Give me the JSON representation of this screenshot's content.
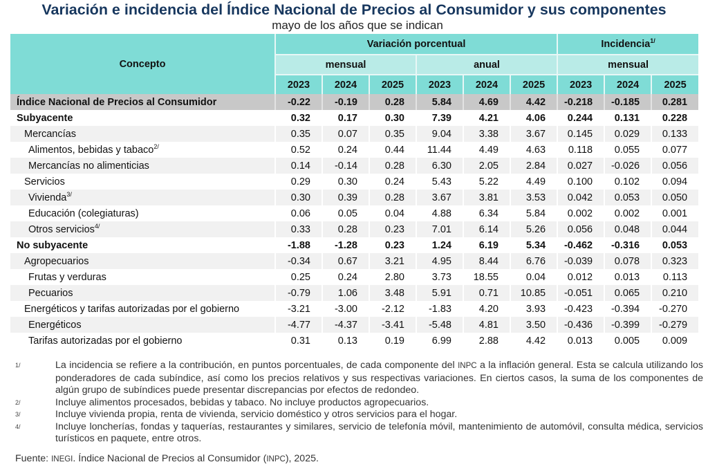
{
  "title": "Variación e incidencia del Índice Nacional de Precios al Consumidor y sus componentes",
  "subtitle": "mayo de los años que se indican",
  "header": {
    "concepto": "Concepto",
    "variacion": "Variación porcentual",
    "incidencia": "Incidencia",
    "incidencia_note": "1/",
    "mensual": "mensual",
    "anual": "anual",
    "mensual_inc": "mensual",
    "years": [
      "2023",
      "2024",
      "2025",
      "2023",
      "2024",
      "2025",
      "2023",
      "2024",
      "2025"
    ]
  },
  "rows": [
    {
      "label": "Índice Nacional de Precios al Consumidor",
      "note": "",
      "level": 0,
      "style": "total",
      "values": [
        "-0.22",
        "-0.19",
        "0.28",
        "5.84",
        "4.69",
        "4.42",
        "-0.218",
        "-0.185",
        "0.281"
      ]
    },
    {
      "label": "Subyacente",
      "note": "",
      "level": 0,
      "style": "bold",
      "values": [
        "0.32",
        "0.17",
        "0.30",
        "7.39",
        "4.21",
        "4.06",
        "0.244",
        "0.131",
        "0.228"
      ]
    },
    {
      "label": "Mercancías",
      "note": "",
      "level": 1,
      "style": "normal",
      "values": [
        "0.35",
        "0.07",
        "0.35",
        "9.04",
        "3.38",
        "3.67",
        "0.145",
        "0.029",
        "0.133"
      ]
    },
    {
      "label": "Alimentos, bebidas y tabaco",
      "note": "2/",
      "level": 2,
      "style": "normal",
      "values": [
        "0.52",
        "0.24",
        "0.44",
        "11.44",
        "4.49",
        "4.63",
        "0.118",
        "0.055",
        "0.077"
      ]
    },
    {
      "label": "Mercancías no alimenticias",
      "note": "",
      "level": 2,
      "style": "normal",
      "values": [
        "0.14",
        "-0.14",
        "0.28",
        "6.30",
        "2.05",
        "2.84",
        "0.027",
        "-0.026",
        "0.056"
      ]
    },
    {
      "label": "Servicios",
      "note": "",
      "level": 1,
      "style": "normal",
      "values": [
        "0.29",
        "0.30",
        "0.24",
        "5.43",
        "5.22",
        "4.49",
        "0.100",
        "0.102",
        "0.094"
      ]
    },
    {
      "label": "Vivienda",
      "note": "3/",
      "level": 2,
      "style": "normal",
      "values": [
        "0.30",
        "0.39",
        "0.28",
        "3.67",
        "3.81",
        "3.53",
        "0.042",
        "0.053",
        "0.050"
      ]
    },
    {
      "label": "Educación (colegiaturas)",
      "note": "",
      "level": 2,
      "style": "normal",
      "values": [
        "0.06",
        "0.05",
        "0.04",
        "4.88",
        "6.34",
        "5.84",
        "0.002",
        "0.002",
        "0.001"
      ]
    },
    {
      "label": "Otros servicios",
      "note": "4/",
      "level": 2,
      "style": "normal",
      "values": [
        "0.33",
        "0.28",
        "0.23",
        "7.01",
        "6.14",
        "5.26",
        "0.056",
        "0.048",
        "0.044"
      ]
    },
    {
      "label": "No subyacente",
      "note": "",
      "level": 0,
      "style": "bold",
      "values": [
        "-1.88",
        "-1.28",
        "0.23",
        "1.24",
        "6.19",
        "5.34",
        "-0.462",
        "-0.316",
        "0.053"
      ]
    },
    {
      "label": "Agropecuarios",
      "note": "",
      "level": 1,
      "style": "normal",
      "values": [
        "-0.34",
        "0.67",
        "3.21",
        "4.95",
        "8.44",
        "6.76",
        "-0.039",
        "0.078",
        "0.323"
      ]
    },
    {
      "label": "Frutas y verduras",
      "note": "",
      "level": 2,
      "style": "normal",
      "values": [
        "0.25",
        "0.24",
        "2.80",
        "3.73",
        "18.55",
        "0.04",
        "0.012",
        "0.013",
        "0.113"
      ]
    },
    {
      "label": "Pecuarios",
      "note": "",
      "level": 2,
      "style": "normal",
      "values": [
        "-0.79",
        "1.06",
        "3.48",
        "5.91",
        "0.71",
        "10.85",
        "-0.051",
        "0.065",
        "0.210"
      ]
    },
    {
      "label": "Energéticos y tarifas autorizadas por el gobierno",
      "note": "",
      "level": 1,
      "style": "normal",
      "values": [
        "-3.21",
        "-3.00",
        "-2.12",
        "-1.83",
        "4.20",
        "3.93",
        "-0.423",
        "-0.394",
        "-0.270"
      ]
    },
    {
      "label": "Energéticos",
      "note": "",
      "level": 2,
      "style": "normal",
      "values": [
        "-4.77",
        "-4.37",
        "-3.41",
        "-5.48",
        "4.81",
        "3.50",
        "-0.436",
        "-0.399",
        "-0.279"
      ]
    },
    {
      "label": "Tarifas autorizadas por el gobierno",
      "note": "",
      "level": 2,
      "style": "normal",
      "values": [
        "0.31",
        "0.13",
        "0.19",
        "6.99",
        "2.88",
        "4.42",
        "0.013",
        "0.005",
        "0.009"
      ]
    }
  ],
  "notes": [
    {
      "mark": "1/",
      "text_before": "La incidencia se refiere a la contribución, en puntos porcentuales, de cada componente del ",
      "smallcaps": "INPC",
      "text_after": " a la inflación general. Esta se calcula utilizando los ponderadores de cada subíndice, así como los precios relativos y sus respectivas variaciones. En ciertos casos, la suma de los componentes de algún grupo de subíndices puede presentar discrepancias por efectos de redondeo."
    },
    {
      "mark": "2/",
      "text_before": "Incluye alimentos procesados, bebidas y tabaco. No incluye productos agropecuarios.",
      "smallcaps": "",
      "text_after": ""
    },
    {
      "mark": "3/",
      "text_before": "Incluye vivienda propia, renta de vivienda, servicio doméstico y otros servicios para el hogar.",
      "smallcaps": "",
      "text_after": ""
    },
    {
      "mark": "4/",
      "text_before": "Incluye loncherías, fondas y taquerías, restaurantes y similares, servicio de telefonía móvil, mantenimiento de automóvil, consulta médica, servicios turísticos en paquete, entre otros.",
      "smallcaps": "",
      "text_after": ""
    }
  ],
  "source": {
    "label": "Fuente: ",
    "org": "INEGI",
    "text1": ". Índice Nacional de Precios al Consumidor (",
    "abbr": "INPC",
    "text2": "), 2025."
  },
  "colors": {
    "title": "#17375e",
    "header_dark": "#7fdcd6",
    "header_light": "#b9ebe7",
    "total_row": "#c8c8c8",
    "stripe": "#f1f1f1"
  }
}
